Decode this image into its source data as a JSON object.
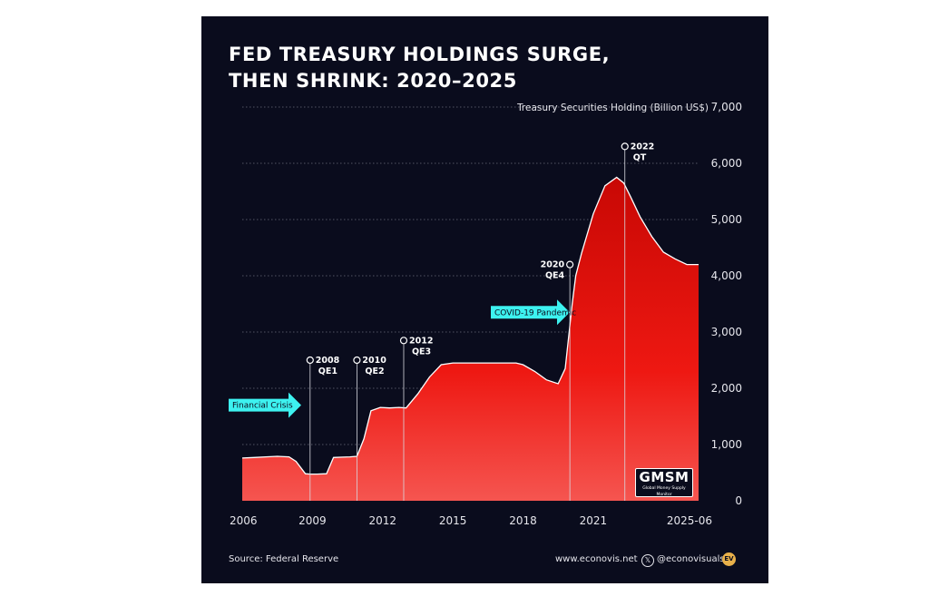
{
  "chart_data": {
    "type": "area",
    "title": "FED TREASURY HOLDINGS SURGE, THEN SHRINK: 2020–2025",
    "ylabel": "Treasury Securities Holding (Billion US$)",
    "xlabel": "",
    "ylim": [
      0,
      7000
    ],
    "xlim": [
      2006,
      2025.5
    ],
    "y_ticks": [
      "0",
      "1,000",
      "2,000",
      "3,000",
      "4,000",
      "5,000",
      "6,000",
      "7,000"
    ],
    "x_ticks": [
      "2006",
      "2009",
      "2012",
      "2015",
      "2018",
      "2021",
      "2025-06"
    ],
    "grid": true,
    "color": "#e8100e",
    "series": [
      {
        "x": [
          2006.0,
          2006.5,
          2007.0,
          2007.5,
          2008.0,
          2008.3,
          2008.7,
          2008.9,
          2009.2,
          2009.6,
          2009.9,
          2010.3,
          2010.6,
          2010.9,
          2011.2,
          2011.5,
          2011.9,
          2012.3,
          2012.7,
          2013.0,
          2013.5,
          2014.0,
          2014.5,
          2015.0,
          2016.0,
          2017.0,
          2017.7,
          2018.0,
          2018.5,
          2019.0,
          2019.5,
          2019.8,
          2020.1,
          2020.25,
          2020.5,
          2021.0,
          2021.5,
          2022.0,
          2022.3,
          2022.6,
          2023.0,
          2023.5,
          2024.0,
          2024.5,
          2025.0,
          2025.5
        ],
        "y": [
          760,
          770,
          780,
          790,
          780,
          700,
          480,
          475,
          475,
          480,
          770,
          775,
          780,
          790,
          1100,
          1600,
          1660,
          1650,
          1660,
          1650,
          1900,
          2200,
          2420,
          2450,
          2450,
          2450,
          2450,
          2420,
          2300,
          2150,
          2080,
          2350,
          3500,
          4000,
          4400,
          5100,
          5600,
          5750,
          5650,
          5400,
          5050,
          4700,
          4420,
          4300,
          4200,
          4200
        ]
      }
    ],
    "annotations": [
      {
        "year": 2008.9,
        "value": 2500,
        "label_year": "2008",
        "label": "QE1"
      },
      {
        "year": 2010.9,
        "value": 2500,
        "label_year": "2010",
        "label": "QE2"
      },
      {
        "year": 2012.9,
        "value": 2850,
        "label_year": "2012",
        "label": "QE3"
      },
      {
        "year": 2020.0,
        "value": 4200,
        "label_year": "2020",
        "label": "QE4"
      },
      {
        "year": 2022.35,
        "value": 6300,
        "label_year": "2022",
        "label": "QT"
      }
    ],
    "arrows": [
      {
        "label": "Financial Crisis",
        "year": 2008.4,
        "value": 1700
      },
      {
        "label": "COVID-19 Pandemic",
        "year": 2020.0,
        "value": 3350
      }
    ]
  },
  "logo": {
    "text": "GMSM",
    "subtext": "Global Money Supply Monitor"
  },
  "footer": {
    "source": "Source: Federal Reserve",
    "website": "www.econovis.net",
    "x_icon": "x-logo-icon",
    "handle": "@econovisuals",
    "badge": "EV"
  }
}
